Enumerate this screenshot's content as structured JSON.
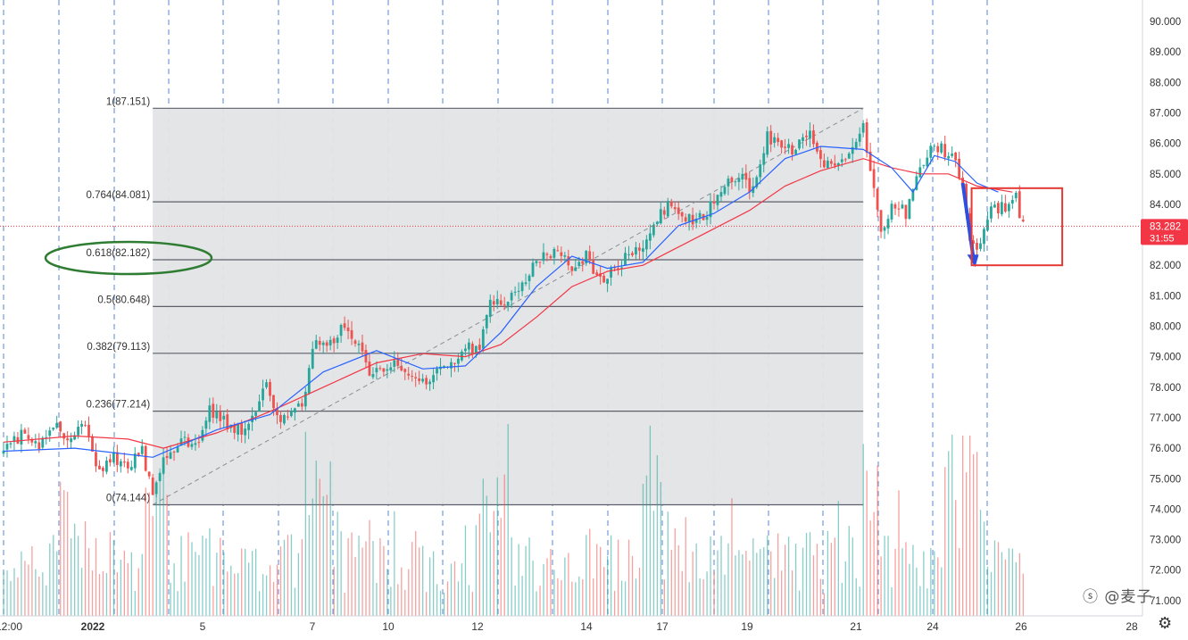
{
  "chart_data": {
    "type": "candlestick",
    "instrument_price_now": "83.282",
    "countdown": "31:55",
    "y_axis": {
      "ylim": [
        70.6,
        90.6
      ],
      "ticks": [
        "90.000",
        "89.000",
        "88.000",
        "87.000",
        "86.000",
        "85.000",
        "84.000",
        "83.000",
        "82.000",
        "81.000",
        "80.000",
        "79.000",
        "78.000",
        "77.000",
        "76.000",
        "75.000",
        "74.000",
        "73.000",
        "72.000",
        "71.000"
      ]
    },
    "x_axis": {
      "ticks": [
        "12:00",
        "2022",
        "5",
        "7",
        "10",
        "12",
        "14",
        "17",
        "19",
        "21",
        "24",
        "26",
        "28"
      ]
    },
    "fibonacci": {
      "levels": [
        {
          "ratio": "1",
          "price": 87.151,
          "label": "1(87.151)"
        },
        {
          "ratio": "0.764",
          "price": 84.081,
          "label": "0.764(84.081)"
        },
        {
          "ratio": "0.618",
          "price": 82.182,
          "label": "0.618(82.182)"
        },
        {
          "ratio": "0.5",
          "price": 80.648,
          "label": "0.5(80.648)"
        },
        {
          "ratio": "0.382",
          "price": 79.113,
          "label": "0.382(79.113)"
        },
        {
          "ratio": "0.236",
          "price": 77.214,
          "label": "0.236(77.214)"
        },
        {
          "ratio": "0",
          "price": 74.144,
          "label": "0(74.144)"
        }
      ],
      "trend_from": {
        "bar": 42,
        "price": 74.144
      },
      "trend_to": {
        "bar": 242,
        "price": 87.151
      },
      "box_end_bar": 242
    },
    "close_path": [
      [
        0,
        75.9
      ],
      [
        6,
        76.6
      ],
      [
        10,
        75.9
      ],
      [
        14,
        76.8
      ],
      [
        18,
        76.2
      ],
      [
        22,
        77.0
      ],
      [
        27,
        75.2
      ],
      [
        31,
        75.7
      ],
      [
        35,
        75.4
      ],
      [
        39,
        76.0
      ],
      [
        42,
        74.4
      ],
      [
        45,
        75.8
      ],
      [
        50,
        76.2
      ],
      [
        54,
        76.1
      ],
      [
        58,
        77.3
      ],
      [
        62,
        76.9
      ],
      [
        67,
        76.6
      ],
      [
        70,
        76.9
      ],
      [
        74,
        78.3
      ],
      [
        76,
        77.2
      ],
      [
        80,
        76.9
      ],
      [
        84,
        77.5
      ],
      [
        88,
        79.7
      ],
      [
        91,
        79.3
      ],
      [
        95,
        79.9
      ],
      [
        99,
        79.6
      ],
      [
        103,
        78.5
      ],
      [
        107,
        78.5
      ],
      [
        111,
        78.9
      ],
      [
        115,
        78.3
      ],
      [
        119,
        78.2
      ],
      [
        123,
        78.8
      ],
      [
        127,
        78.8
      ],
      [
        131,
        79.3
      ],
      [
        134,
        79.4
      ],
      [
        137,
        80.9
      ],
      [
        141,
        80.9
      ],
      [
        145,
        81.2
      ],
      [
        149,
        82.0
      ],
      [
        152,
        82.5
      ],
      [
        156,
        82.3
      ],
      [
        160,
        82.0
      ],
      [
        164,
        82.3
      ],
      [
        168,
        81.4
      ],
      [
        172,
        81.8
      ],
      [
        176,
        82.5
      ],
      [
        180,
        82.5
      ],
      [
        183,
        83.5
      ],
      [
        187,
        84.0
      ],
      [
        191,
        83.7
      ],
      [
        195,
        83.4
      ],
      [
        199,
        83.9
      ],
      [
        203,
        84.5
      ],
      [
        207,
        85.0
      ],
      [
        211,
        84.4
      ],
      [
        215,
        86.3
      ],
      [
        219,
        85.7
      ],
      [
        223,
        85.9
      ],
      [
        227,
        86.4
      ],
      [
        231,
        85.4
      ],
      [
        235,
        85.4
      ],
      [
        239,
        85.7
      ],
      [
        242,
        86.5
      ],
      [
        244,
        85.3
      ],
      [
        247,
        83.2
      ],
      [
        250,
        84.0
      ],
      [
        254,
        83.7
      ],
      [
        258,
        85.2
      ],
      [
        262,
        85.9
      ],
      [
        266,
        85.7
      ],
      [
        270,
        84.8
      ],
      [
        272,
        83.0
      ],
      [
        275,
        82.6
      ],
      [
        278,
        84.0
      ],
      [
        282,
        83.8
      ],
      [
        285,
        84.2
      ],
      [
        287,
        83.3
      ]
    ],
    "ma_fast": [
      [
        0,
        75.9
      ],
      [
        20,
        76.0
      ],
      [
        42,
        75.7
      ],
      [
        60,
        76.6
      ],
      [
        75,
        77.1
      ],
      [
        90,
        78.5
      ],
      [
        105,
        79.2
      ],
      [
        118,
        78.6
      ],
      [
        130,
        78.7
      ],
      [
        140,
        79.8
      ],
      [
        150,
        81.3
      ],
      [
        160,
        82.3
      ],
      [
        170,
        81.9
      ],
      [
        180,
        82.1
      ],
      [
        190,
        83.3
      ],
      [
        200,
        83.7
      ],
      [
        210,
        84.4
      ],
      [
        220,
        85.5
      ],
      [
        230,
        85.9
      ],
      [
        242,
        85.8
      ],
      [
        250,
        85.2
      ],
      [
        256,
        84.4
      ],
      [
        262,
        85.6
      ],
      [
        268,
        85.4
      ],
      [
        274,
        84.7
      ],
      [
        280,
        84.4
      ]
    ],
    "ma_slow": [
      [
        0,
        76.2
      ],
      [
        20,
        76.4
      ],
      [
        35,
        76.3
      ],
      [
        45,
        76.0
      ],
      [
        60,
        76.5
      ],
      [
        75,
        77.2
      ],
      [
        90,
        78.0
      ],
      [
        105,
        78.8
      ],
      [
        118,
        79.1
      ],
      [
        130,
        79.0
      ],
      [
        140,
        79.4
      ],
      [
        150,
        80.3
      ],
      [
        160,
        81.3
      ],
      [
        170,
        81.8
      ],
      [
        180,
        82.0
      ],
      [
        190,
        82.6
      ],
      [
        200,
        83.2
      ],
      [
        210,
        83.8
      ],
      [
        220,
        84.6
      ],
      [
        230,
        85.1
      ],
      [
        242,
        85.5
      ],
      [
        250,
        85.2
      ],
      [
        258,
        85.0
      ],
      [
        266,
        85.0
      ],
      [
        274,
        84.6
      ],
      [
        284,
        84.4
      ]
    ],
    "current_price": 83.282,
    "ellipse_level": "0.618(82.182)",
    "arrow": {
      "from": {
        "bar": 270,
        "price": 84.7
      },
      "to": {
        "bar": 273,
        "price": 82.0
      }
    },
    "highlight_box": {
      "bar_from": 272,
      "bar_to": 295,
      "price_top": 84.5,
      "price_bottom": 82.0
    },
    "volume_scale_max": 77000,
    "volume_seed": 7
  },
  "colors": {
    "up": "#26a69a",
    "down": "#ef5350",
    "ma_fast": "#2962ff",
    "ma_slow": "#f23645",
    "fib_fill": "#e3e4e6",
    "fib_line": "#5d606b",
    "grid_dash": "#3a73c8",
    "ellipse": "#2e7d32",
    "box": "#e53935",
    "arrow": "#2f4fe0",
    "price_label_bg": "#f23645"
  },
  "watermark": "ⓢ @麦子",
  "icons": {
    "settings": "gear-icon"
  }
}
